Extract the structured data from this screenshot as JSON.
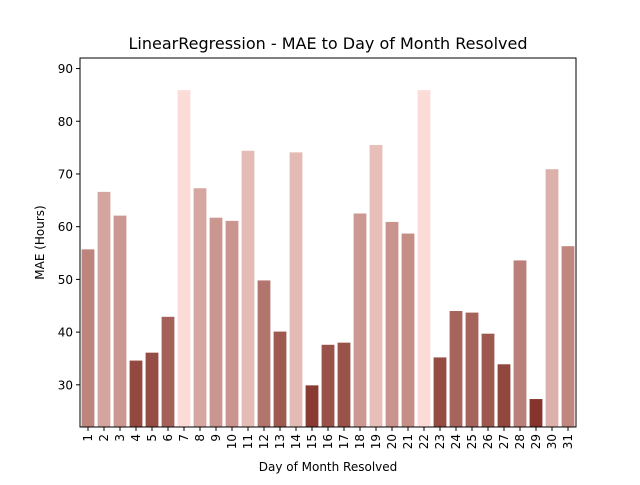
{
  "chart_data": {
    "type": "bar",
    "title": "LinearRegression - MAE to Day of Month Resolved",
    "xlabel": "Day of Month Resolved",
    "ylabel": "MAE (Hours)",
    "ylim": [
      22,
      92
    ],
    "yticks": [
      30,
      40,
      50,
      60,
      70,
      80,
      90
    ],
    "grid": false,
    "categories": [
      "1",
      "2",
      "3",
      "4",
      "5",
      "6",
      "7",
      "8",
      "9",
      "10",
      "11",
      "12",
      "13",
      "14",
      "15",
      "16",
      "17",
      "18",
      "19",
      "20",
      "21",
      "22",
      "23",
      "24",
      "25",
      "26",
      "27",
      "28",
      "29",
      "30",
      "31"
    ],
    "values": [
      55.7,
      66.6,
      62.1,
      34.6,
      36.1,
      42.9,
      85.9,
      67.3,
      61.7,
      61.1,
      74.4,
      49.8,
      40.1,
      74.1,
      29.9,
      37.6,
      38.0,
      62.5,
      75.5,
      60.9,
      58.7,
      85.9,
      35.2,
      44.0,
      43.7,
      39.7,
      33.9,
      53.6,
      27.3,
      70.9,
      56.3
    ]
  }
}
